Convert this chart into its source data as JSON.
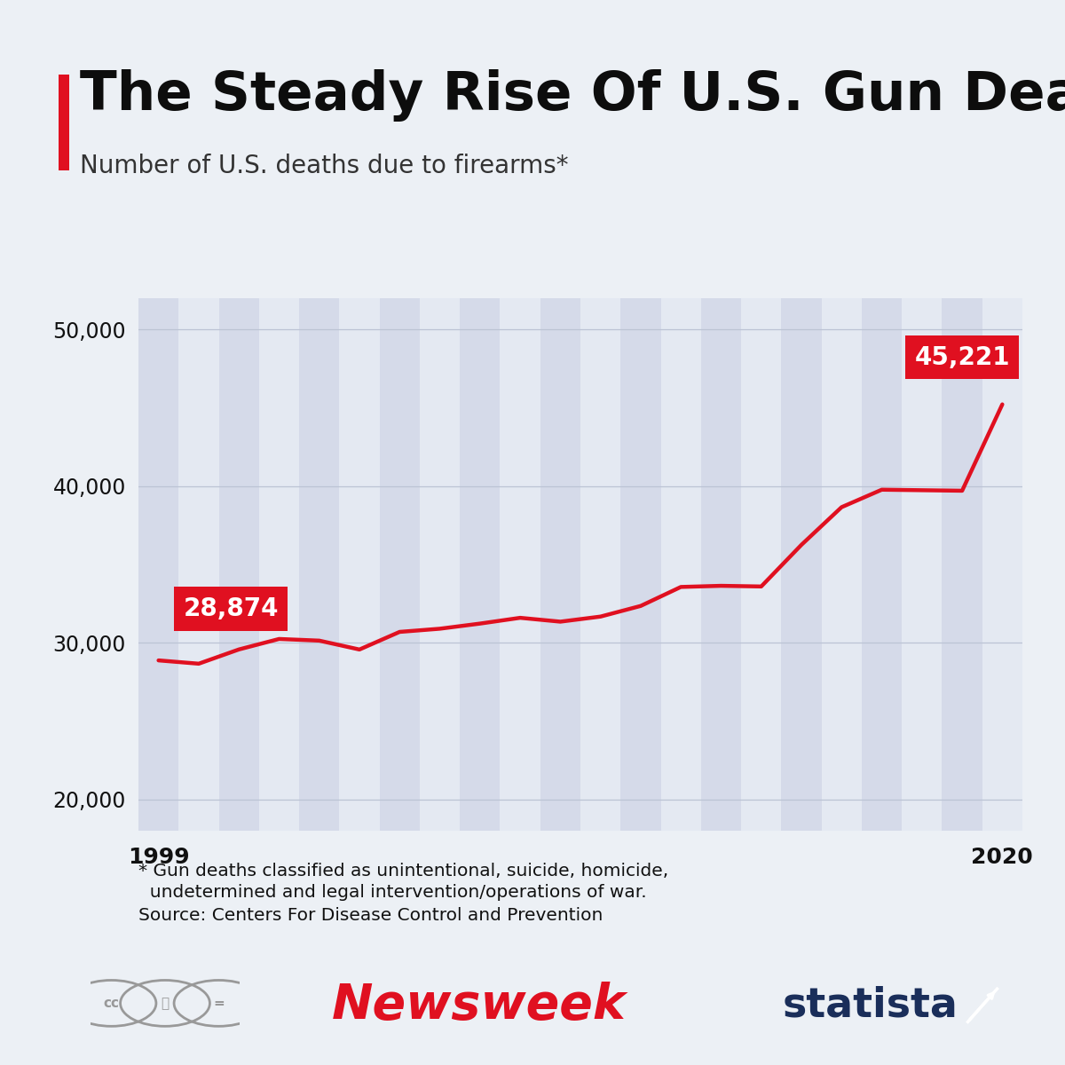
{
  "title": "The Steady Rise Of U.S. Gun Deaths",
  "subtitle": "Number of U.S. deaths due to firearms*",
  "bg_color": "#ecf0f5",
  "plot_bg_color": "#e4e9f2",
  "line_color": "#e01020",
  "line_width": 3.2,
  "years": [
    1999,
    2000,
    2001,
    2002,
    2003,
    2004,
    2005,
    2006,
    2007,
    2008,
    2009,
    2010,
    2011,
    2012,
    2013,
    2014,
    2015,
    2016,
    2017,
    2018,
    2019,
    2020
  ],
  "values": [
    28874,
    28663,
    29573,
    30242,
    30136,
    29569,
    30694,
    30896,
    31224,
    31593,
    31347,
    31672,
    32351,
    33563,
    33636,
    33594,
    36252,
    38658,
    39773,
    39740,
    39707,
    45221
  ],
  "ylim": [
    18000,
    52000
  ],
  "yticks": [
    20000,
    30000,
    40000,
    50000
  ],
  "annotation_first_label": "28,874",
  "annotation_last_label": "45,221",
  "annotation_bg_color": "#e01020",
  "annotation_text_color": "#ffffff",
  "footnote_line1": "* Gun deaths classified as unintentional, suicide, homicide,",
  "footnote_line2": "  undetermined and legal intervention/operations of war.",
  "footnote_line3": "Source: Centers For Disease Control and Prevention",
  "title_bar_color": "#e01020",
  "stripe_color": "#d4d9e8",
  "stripe_alpha": 0.9,
  "grid_color": "#bcc3d4",
  "tick_label_color": "#111111",
  "xlabel_1999": "1999",
  "xlabel_2020": "2020"
}
